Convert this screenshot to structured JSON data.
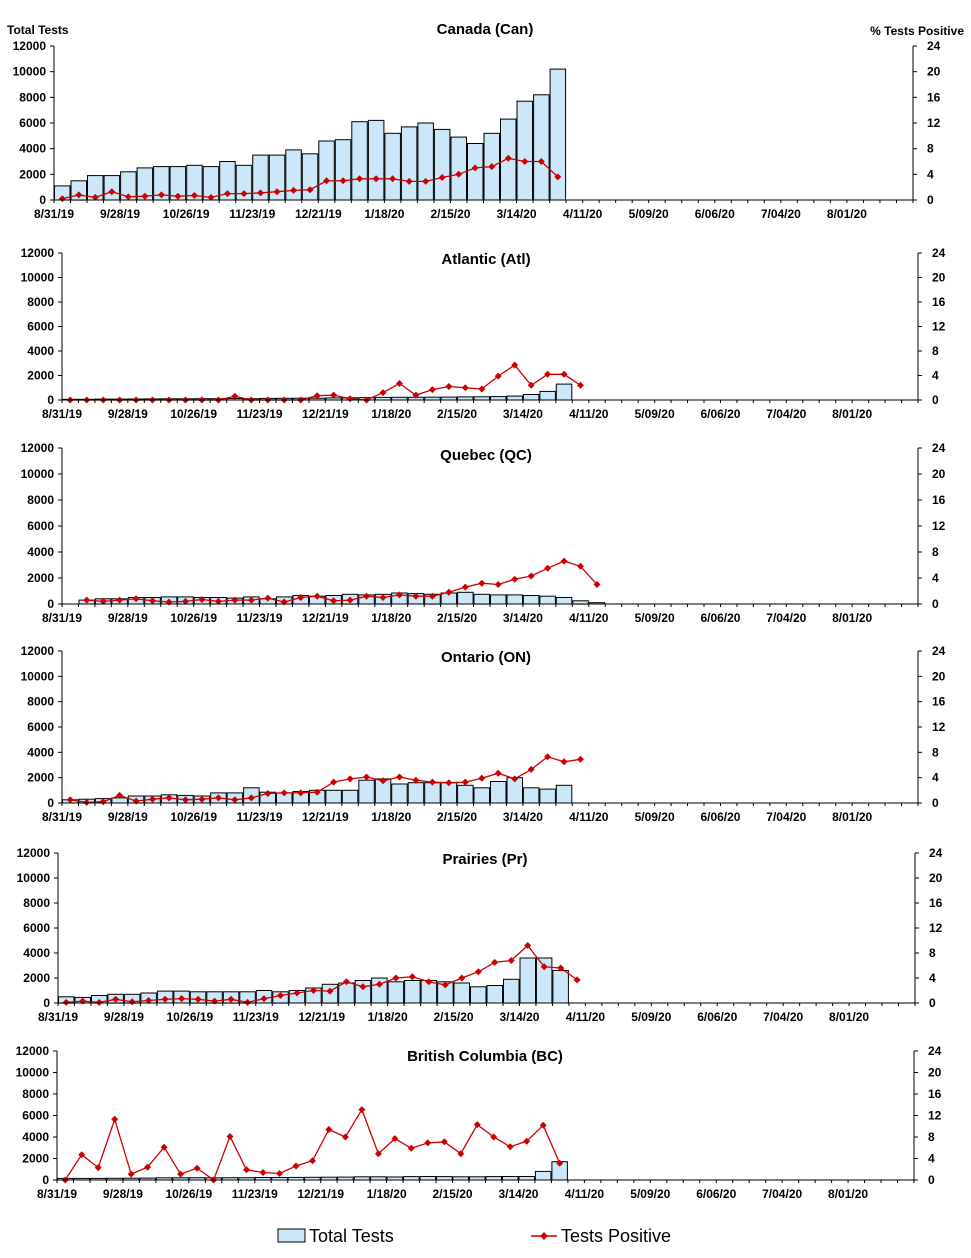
{
  "colors": {
    "bar_fill": "#cce8f8",
    "bar_stroke": "#000000",
    "line": "#cc0000",
    "axis": "#000000"
  },
  "legend": {
    "bars_label": "Total Tests",
    "line_label": "Tests Positive",
    "position": "bottom"
  },
  "chart_data": [
    {
      "type": "bar+line",
      "title": "Canada (Can)",
      "ylabel": "Total Tests",
      "y2label": "% Tests Positive",
      "ylim": [
        0,
        12000
      ],
      "y2lim": [
        0,
        24
      ],
      "yticks": [
        "0",
        "2000",
        "4000",
        "6000",
        "8000",
        "10000",
        "12000"
      ],
      "y2ticks": [
        "0",
        "4",
        "8",
        "12",
        "16",
        "20",
        "24"
      ],
      "xticks": [
        "8/31/19",
        "9/28/19",
        "10/26/19",
        "11/23/19",
        "12/21/19",
        "1/18/20",
        "2/15/20",
        "3/14/20",
        "4/11/20",
        "5/09/20",
        "6/06/20",
        "7/04/20",
        "8/01/20"
      ],
      "num_weeks": 52,
      "grid": false,
      "series": [
        {
          "name": "Total Tests",
          "kind": "bar",
          "values": [
            1100,
            1500,
            1900,
            1900,
            2200,
            2500,
            2600,
            2600,
            2700,
            2600,
            3000,
            2700,
            3500,
            3500,
            3900,
            3600,
            4600,
            4700,
            6100,
            6200,
            5200,
            5700,
            6000,
            5500,
            4900,
            4400,
            5200,
            6300,
            7700,
            8200,
            10200
          ]
        },
        {
          "name": "Tests Positive",
          "kind": "line",
          "axis": "right",
          "values": [
            0.2,
            0.8,
            0.4,
            1.3,
            0.5,
            0.6,
            0.8,
            0.6,
            0.7,
            0.4,
            1.0,
            1.0,
            1.1,
            1.3,
            1.5,
            1.6,
            3.0,
            3.0,
            3.3,
            3.3,
            3.3,
            2.9,
            2.9,
            3.5,
            4.0,
            5.0,
            5.2,
            6.5,
            6.0,
            6.0,
            3.6
          ]
        }
      ]
    },
    {
      "type": "bar+line",
      "title": "Atlantic (Atl)",
      "ylim": [
        0,
        12000
      ],
      "y2lim": [
        0,
        24
      ],
      "yticks": [
        "0",
        "2000",
        "4000",
        "6000",
        "8000",
        "10000",
        "12000"
      ],
      "y2ticks": [
        "0",
        "4",
        "8",
        "12",
        "16",
        "20",
        "24"
      ],
      "xticks": [
        "8/31/19",
        "9/28/19",
        "10/26/19",
        "11/23/19",
        "12/21/19",
        "1/18/20",
        "2/15/20",
        "3/14/20",
        "4/11/20",
        "5/09/20",
        "6/06/20",
        "7/04/20",
        "8/01/20"
      ],
      "num_weeks": 52,
      "grid": false,
      "series": [
        {
          "name": "Total Tests",
          "kind": "bar",
          "values": [
            60,
            60,
            70,
            70,
            80,
            90,
            100,
            100,
            110,
            110,
            120,
            110,
            130,
            140,
            150,
            150,
            170,
            180,
            200,
            210,
            220,
            220,
            230,
            240,
            250,
            260,
            280,
            320,
            450,
            700,
            1300
          ]
        },
        {
          "name": "Tests Positive",
          "kind": "line",
          "axis": "right",
          "values": [
            0,
            0,
            0,
            0,
            0,
            0,
            0,
            0,
            0,
            0,
            0.6,
            0,
            0,
            0,
            0,
            0.7,
            0.8,
            0.2,
            0,
            1.2,
            2.7,
            0.8,
            1.7,
            2.2,
            2.0,
            1.8,
            3.9,
            5.7,
            2.4,
            4.2,
            4.2,
            2.4
          ]
        }
      ]
    },
    {
      "type": "bar+line",
      "title": "Quebec (QC)",
      "ylim": [
        0,
        12000
      ],
      "y2lim": [
        0,
        24
      ],
      "yticks": [
        "0",
        "2000",
        "4000",
        "6000",
        "8000",
        "10000",
        "12000"
      ],
      "y2ticks": [
        "0",
        "4",
        "8",
        "12",
        "16",
        "20",
        "24"
      ],
      "xticks": [
        "8/31/19",
        "9/28/19",
        "10/26/19",
        "11/23/19",
        "12/21/19",
        "1/18/20",
        "2/15/20",
        "3/14/20",
        "4/11/20",
        "5/09/20",
        "6/06/20",
        "7/04/20",
        "8/01/20"
      ],
      "num_weeks": 52,
      "grid": false,
      "series": [
        {
          "name": "Total Tests",
          "kind": "bar",
          "values": [
            0,
            300,
            400,
            400,
            500,
            500,
            550,
            550,
            500,
            500,
            450,
            550,
            400,
            550,
            650,
            600,
            650,
            750,
            700,
            750,
            850,
            800,
            750,
            850,
            900,
            750,
            700,
            700,
            650,
            600,
            500,
            250,
            100
          ]
        },
        {
          "name": "Tests Positive",
          "kind": "line",
          "axis": "right",
          "values": [
            null,
            0.6,
            0.4,
            0.6,
            0.8,
            0.5,
            0.3,
            0.4,
            0.7,
            0.4,
            0.6,
            0.6,
            0.9,
            0.3,
            1.0,
            1.2,
            0.5,
            0.6,
            1.2,
            1.0,
            1.4,
            1.2,
            1.2,
            1.8,
            2.6,
            3.2,
            3.0,
            3.8,
            4.3,
            5.5,
            6.6,
            5.8,
            3.0
          ]
        }
      ]
    },
    {
      "type": "bar+line",
      "title": "Ontario (ON)",
      "ylim": [
        0,
        12000
      ],
      "y2lim": [
        0,
        24
      ],
      "yticks": [
        "0",
        "2000",
        "4000",
        "6000",
        "8000",
        "10000",
        "12000"
      ],
      "y2ticks": [
        "0",
        "4",
        "8",
        "12",
        "16",
        "20",
        "24"
      ],
      "xticks": [
        "8/31/19",
        "9/28/19",
        "10/26/19",
        "11/23/19",
        "12/21/19",
        "1/18/20",
        "2/15/20",
        "3/14/20",
        "4/11/20",
        "5/09/20",
        "6/06/20",
        "7/04/20",
        "8/01/20"
      ],
      "num_weeks": 52,
      "grid": false,
      "series": [
        {
          "name": "Total Tests",
          "kind": "bar",
          "values": [
            250,
            300,
            350,
            400,
            550,
            550,
            650,
            600,
            550,
            800,
            800,
            1200,
            850,
            800,
            900,
            1000,
            1000,
            1000,
            1800,
            1900,
            1500,
            1600,
            1600,
            1600,
            1400,
            1200,
            1700,
            2000,
            1200,
            1100,
            1400
          ]
        },
        {
          "name": "Tests Positive",
          "kind": "line",
          "axis": "right",
          "values": [
            0.5,
            0.1,
            0.2,
            1.2,
            0.3,
            0.6,
            0.8,
            0.5,
            0.6,
            0.8,
            0.5,
            0.8,
            1.5,
            1.6,
            1.6,
            1.7,
            3.3,
            3.8,
            4.1,
            3.5,
            4.1,
            3.6,
            3.3,
            3.2,
            3.3,
            3.9,
            4.7,
            3.8,
            5.3,
            7.3,
            6.5,
            6.9
          ]
        }
      ]
    },
    {
      "type": "bar+line",
      "title": "Prairies (Pr)",
      "ylim": [
        0,
        12000
      ],
      "y2lim": [
        0,
        24
      ],
      "yticks": [
        "0",
        "2000",
        "4000",
        "6000",
        "8000",
        "10000",
        "12000"
      ],
      "y2ticks": [
        "0",
        "4",
        "8",
        "12",
        "16",
        "20",
        "24"
      ],
      "xticks": [
        "8/31/19",
        "9/28/19",
        "10/26/19",
        "11/23/19",
        "12/21/19",
        "1/18/20",
        "2/15/20",
        "3/14/20",
        "4/11/20",
        "5/09/20",
        "6/06/20",
        "7/04/20",
        "8/01/20"
      ],
      "num_weeks": 52,
      "grid": false,
      "series": [
        {
          "name": "Total Tests",
          "kind": "bar",
          "values": [
            500,
            450,
            600,
            700,
            700,
            800,
            950,
            950,
            900,
            900,
            900,
            900,
            1000,
            900,
            1000,
            1200,
            1500,
            1600,
            1800,
            2000,
            1700,
            1800,
            1800,
            1700,
            1600,
            1300,
            1400,
            1900,
            3600,
            3600,
            2600
          ]
        },
        {
          "name": "Tests Positive",
          "kind": "line",
          "axis": "right",
          "values": [
            0.1,
            0.3,
            0.1,
            0.6,
            0.2,
            0.4,
            0.6,
            0.7,
            0.6,
            0.3,
            0.6,
            0.1,
            0.7,
            1.2,
            1.6,
            2.0,
            1.9,
            3.4,
            2.6,
            3.0,
            4.0,
            4.2,
            3.4,
            2.9,
            4.0,
            5.0,
            6.5,
            6.8,
            9.2,
            5.8,
            5.6,
            3.7
          ]
        }
      ]
    },
    {
      "type": "bar+line",
      "title": "British Columbia (BC)",
      "ylim": [
        0,
        12000
      ],
      "y2lim": [
        0,
        24
      ],
      "yticks": [
        "0",
        "2000",
        "4000",
        "6000",
        "8000",
        "10000",
        "12000"
      ],
      "y2ticks": [
        "0",
        "4",
        "8",
        "12",
        "16",
        "20",
        "24"
      ],
      "xticks": [
        "8/31/19",
        "9/28/19",
        "10/26/19",
        "11/23/19",
        "12/21/19",
        "1/18/20",
        "2/15/20",
        "3/14/20",
        "4/11/20",
        "5/09/20",
        "6/06/20",
        "7/04/20",
        "8/01/20"
      ],
      "num_weeks": 52,
      "grid": false,
      "series": [
        {
          "name": "Total Tests",
          "kind": "bar",
          "values": [
            150,
            150,
            150,
            160,
            170,
            180,
            200,
            200,
            210,
            200,
            210,
            210,
            230,
            230,
            240,
            250,
            260,
            270,
            300,
            300,
            280,
            320,
            330,
            320,
            300,
            300,
            320,
            330,
            330,
            800,
            1700
          ]
        },
        {
          "name": "Tests Positive",
          "kind": "line",
          "axis": "right",
          "values": [
            0,
            4.7,
            2.3,
            11.3,
            1.1,
            2.4,
            6.1,
            1.1,
            2.2,
            0,
            8.1,
            1.9,
            1.4,
            1.2,
            2.6,
            3.6,
            9.4,
            8.0,
            13.1,
            4.9,
            7.7,
            5.9,
            6.9,
            7.1,
            4.9,
            10.3,
            8.0,
            6.2,
            7.2,
            10.2,
            3.1
          ]
        }
      ]
    }
  ]
}
